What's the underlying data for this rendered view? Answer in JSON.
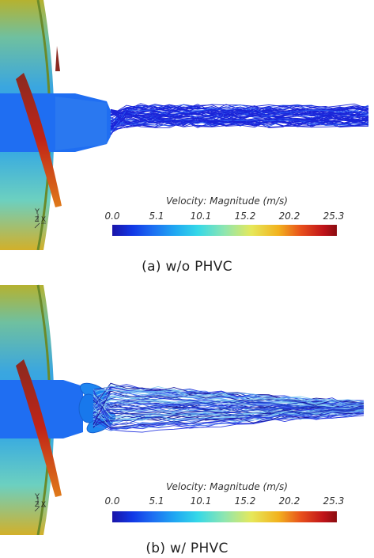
{
  "figure": {
    "panels": [
      {
        "caption": "(a) w/o PHVC",
        "colorbar": {
          "title": "Velocity: Magnitude (m/s)",
          "ticks": [
            "0.0",
            "5.1",
            "10.1",
            "15.2",
            "20.2",
            "25.3"
          ],
          "range": [
            0.0,
            25.3
          ]
        },
        "axes_triad": {
          "up": "Y",
          "z": "Z",
          "x": "X"
        }
      },
      {
        "caption": "(b) w/ PHVC",
        "colorbar": {
          "title": "Velocity: Magnitude (m/s)",
          "ticks": [
            "0.0",
            "5.1",
            "10.1",
            "15.2",
            "20.2",
            "25.3"
          ],
          "range": [
            0.0,
            25.3
          ]
        },
        "axes_triad": {
          "up": "Y",
          "z": "Z",
          "x": "X"
        }
      }
    ]
  },
  "colors": {
    "low": "#1a14a8",
    "mid": "#35d8e8",
    "high": "#c0141a",
    "hub": "#1f6ef2"
  }
}
